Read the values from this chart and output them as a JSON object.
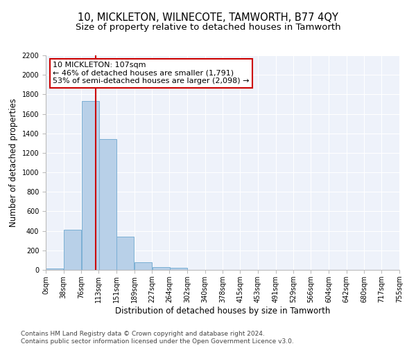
{
  "title": "10, MICKLETON, WILNECOTE, TAMWORTH, B77 4QY",
  "subtitle": "Size of property relative to detached houses in Tamworth",
  "xlabel": "Distribution of detached houses by size in Tamworth",
  "ylabel": "Number of detached properties",
  "bar_color": "#b8d0e8",
  "bar_edge_color": "#7aafd4",
  "background_color": "#eef2fa",
  "grid_color": "#ffffff",
  "annotation_box_color": "#cc0000",
  "vline_color": "#cc0000",
  "annotation_line1": "10 MICKLETON: 107sqm",
  "annotation_line2": "← 46% of detached houses are smaller (1,791)",
  "annotation_line3": "53% of semi-detached houses are larger (2,098) →",
  "property_size": 107,
  "bins_left": [
    0,
    38,
    76,
    113,
    151,
    189,
    227,
    264,
    302,
    340,
    378,
    415,
    453,
    491,
    529,
    566,
    604,
    642,
    680,
    717
  ],
  "bin_width": 38,
  "bar_heights": [
    15,
    410,
    1735,
    1340,
    340,
    75,
    30,
    20,
    0,
    0,
    0,
    0,
    0,
    0,
    0,
    0,
    0,
    0,
    0,
    0
  ],
  "ylim": [
    0,
    2200
  ],
  "yticks": [
    0,
    200,
    400,
    600,
    800,
    1000,
    1200,
    1400,
    1600,
    1800,
    2000,
    2200
  ],
  "xtick_labels": [
    "0sqm",
    "38sqm",
    "76sqm",
    "113sqm",
    "151sqm",
    "189sqm",
    "227sqm",
    "264sqm",
    "302sqm",
    "340sqm",
    "378sqm",
    "415sqm",
    "453sqm",
    "491sqm",
    "529sqm",
    "566sqm",
    "604sqm",
    "642sqm",
    "680sqm",
    "717sqm",
    "755sqm"
  ],
  "footer_text": "Contains HM Land Registry data © Crown copyright and database right 2024.\nContains public sector information licensed under the Open Government Licence v3.0.",
  "title_fontsize": 10.5,
  "subtitle_fontsize": 9.5,
  "tick_fontsize": 7,
  "ylabel_fontsize": 8.5,
  "xlabel_fontsize": 8.5,
  "annotation_fontsize": 8,
  "footer_fontsize": 6.5
}
